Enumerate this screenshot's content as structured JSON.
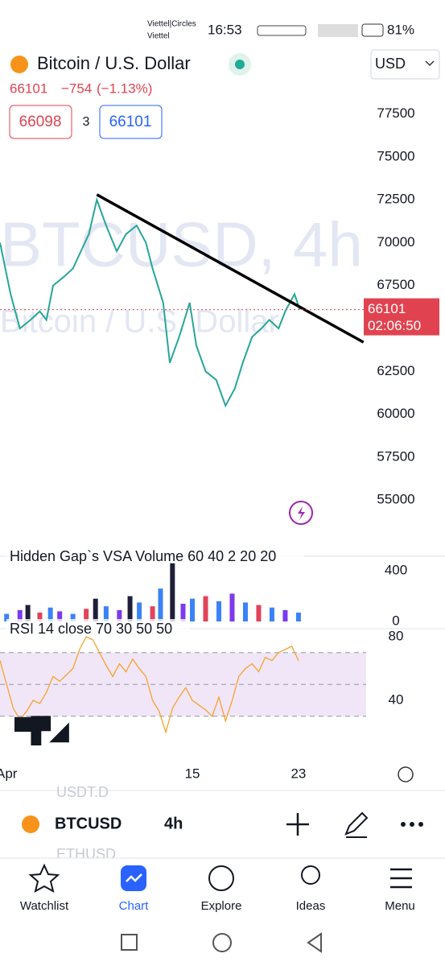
{
  "status_bar": {
    "carrier": "Viettel|Circles",
    "carrier_sub": "Viettel",
    "time": "16:53",
    "battery": "81%"
  },
  "header": {
    "title": "Bitcoin / U.S. Dollar",
    "currency": "USD",
    "last": "66101",
    "change": "−754",
    "change_pct": "(−1.13%)",
    "sell": "66098",
    "spread": "3",
    "buy": "66101"
  },
  "chart_data": [
    {
      "type": "line",
      "watermark": "BTCUSD, 4h",
      "watermark_sub": "Bitcoin / U.S. Dollar",
      "x": [
        0.5,
        1.3,
        2,
        2.8,
        3.5,
        4,
        4.5,
        5.3,
        6,
        6.6,
        7.2,
        7.8,
        8.5,
        9.3,
        10,
        10.8,
        11.5,
        12,
        12.8,
        13.3,
        14,
        14.8,
        15.3,
        16,
        16.8,
        17.5,
        18.2,
        18.8,
        19.5,
        20.2,
        20.8,
        21.5,
        22,
        22.7,
        23.1
      ],
      "series": [
        {
          "color": "#26a69a",
          "values": [
            70000,
            67000,
            65000,
            65500,
            66000,
            65500,
            67500,
            68000,
            68500,
            69500,
            70500,
            72500,
            71000,
            69500,
            70500,
            71000,
            70000,
            68500,
            66500,
            63000,
            64500,
            66500,
            64000,
            62500,
            62000,
            60500,
            61500,
            63000,
            64500,
            65000,
            65500,
            65000,
            66000,
            67000,
            66101
          ]
        }
      ],
      "xlim": [
        0.5,
        28.1
      ],
      "ylim": [
        53650,
        79450
      ],
      "yticks": [
        55000,
        57500,
        60000,
        62500,
        65000,
        67500,
        70000,
        72500,
        75000,
        77500
      ],
      "last_price": 66101,
      "countdown": "02:06:50",
      "last_color": "#e0434f",
      "trendline": {
        "x": [
          7.8,
          27.9
        ],
        "values": [
          72800,
          64200
        ]
      }
    },
    {
      "type": "bar",
      "title": "Hidden Gap`s VSA Volume 60 40 2 20 20",
      "x": [
        1,
        2,
        2.6,
        3.5,
        4.3,
        5,
        6,
        7,
        7.7,
        8.5,
        9.5,
        10.3,
        11,
        12,
        12.6,
        13.5,
        14.3,
        15,
        16,
        17,
        18,
        19,
        20,
        21,
        22,
        23
      ],
      "series": [
        {
          "values": [
            60,
            90,
            130,
            70,
            110,
            80,
            60,
            100,
            180,
            120,
            90,
            200,
            150,
            120,
            260,
            460,
            140,
            180,
            200,
            160,
            220,
            150,
            130,
            110,
            90,
            70
          ],
          "colors": [
            "#3b82f6",
            "#7c3aed",
            "#1f1f3a",
            "#e0435a",
            "#3b82f6",
            "#7c3aed",
            "#3b82f6",
            "#e0435a",
            "#1f1f3a",
            "#3b82f6",
            "#7c3aed",
            "#1f1f3a",
            "#3b82f6",
            "#e0435a",
            "#3b82f6",
            "#1f1f3a",
            "#7c3aed",
            "#3b82f6",
            "#e0435a",
            "#3b82f6",
            "#7c3aed",
            "#3b82f6",
            "#e0435a",
            "#3b82f6",
            "#7c3aed",
            "#3b82f6"
          ]
        }
      ],
      "xlim": [
        0.5,
        28.1
      ],
      "ylim": [
        0,
        490
      ],
      "yticks": [
        0,
        400
      ]
    },
    {
      "type": "line",
      "title": "RSI 14 close 70 30 50 50",
      "x": [
        0.5,
        1,
        1.5,
        2,
        2.5,
        3,
        3.5,
        4,
        4.5,
        5,
        6,
        6.5,
        7,
        7.5,
        8,
        8.5,
        9,
        9.5,
        10,
        10.5,
        11,
        11.5,
        12,
        12.5,
        13,
        13.5,
        14,
        14.5,
        15,
        15.5,
        16,
        16.5,
        17,
        17.5,
        18,
        18.5,
        19,
        19.5,
        20,
        20.5,
        21,
        21.5,
        22,
        22.5,
        23
      ],
      "series": [
        {
          "color": "#f7a22e",
          "values": [
            65,
            50,
            35,
            28,
            33,
            40,
            38,
            45,
            55,
            52,
            60,
            72,
            80,
            78,
            70,
            62,
            55,
            63,
            58,
            66,
            60,
            55,
            40,
            33,
            20,
            35,
            42,
            48,
            40,
            37,
            34,
            30,
            42,
            27,
            40,
            55,
            60,
            63,
            58,
            67,
            65,
            70,
            72,
            74,
            65
          ]
        }
      ],
      "xlim": [
        0.5,
        28.1
      ],
      "ylim": [
        4.6,
        83
      ],
      "yticks": [
        40,
        80
      ],
      "hlines": [
        70,
        50,
        30
      ],
      "band": [
        30,
        70
      ],
      "band_color": "#f1e6f7",
      "xticks": [
        {
          "value": 1,
          "label": "Apr"
        },
        15,
        23
      ]
    }
  ],
  "toolbar": {
    "symbol": "BTCUSD",
    "interval": "4h",
    "ghost_above": "USDT.D",
    "ghost_below": "ETHUSD"
  },
  "nav": {
    "items": [
      "Watchlist",
      "Chart",
      "Explore",
      "Ideas",
      "Menu"
    ]
  }
}
